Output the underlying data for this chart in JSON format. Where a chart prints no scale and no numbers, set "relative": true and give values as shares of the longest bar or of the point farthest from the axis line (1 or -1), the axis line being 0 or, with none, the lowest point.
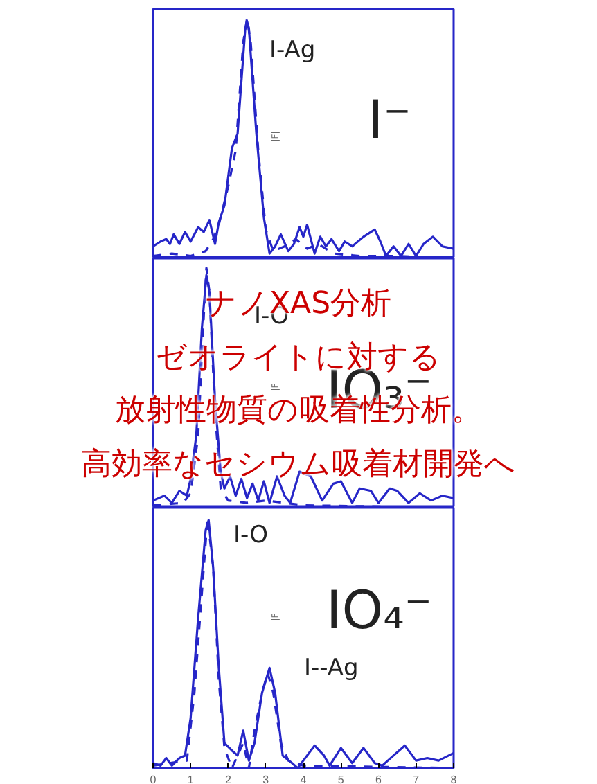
{
  "chart_data": [
    {
      "type": "line",
      "relative": true,
      "ylabel": "|F|",
      "xlim": [
        0,
        8
      ],
      "xticks": [
        0,
        1,
        2,
        3,
        4,
        5,
        6,
        7,
        8
      ],
      "tick_labels": false,
      "marker": "none",
      "grid": false,
      "annotations": [
        "I-Ag",
        "I⁻"
      ],
      "series": [
        {
          "color": "#2626c8",
          "line_style": "solid",
          "x": [
            0,
            0.2,
            0.35,
            0.45,
            0.55,
            0.7,
            0.85,
            1.0,
            1.2,
            1.35,
            1.5,
            1.65,
            1.75,
            1.9,
            2.1,
            2.25,
            2.45,
            2.5,
            2.55,
            2.75,
            2.95,
            3.1,
            3.25,
            3.4,
            3.6,
            3.75,
            3.9,
            4.0,
            4.1,
            4.3,
            4.45,
            4.6,
            4.75,
            4.95,
            5.1,
            5.3,
            5.6,
            5.9,
            6.05,
            6.2,
            6.4,
            6.6,
            6.8,
            7.0,
            7.2,
            7.45,
            7.7,
            8.0
          ],
          "values": [
            0.05,
            0.07,
            0.08,
            0.06,
            0.1,
            0.06,
            0.11,
            0.07,
            0.13,
            0.11,
            0.16,
            0.06,
            0.15,
            0.22,
            0.46,
            0.52,
            0.95,
            0.99,
            0.96,
            0.52,
            0.17,
            0.02,
            0.05,
            0.1,
            0.03,
            0.06,
            0.13,
            0.09,
            0.14,
            0.02,
            0.09,
            0.05,
            0.08,
            0.03,
            0.07,
            0.05,
            0.09,
            0.12,
            0.07,
            0.01,
            0.05,
            0.01,
            0.06,
            0.01,
            0.06,
            0.09,
            0.05,
            0.04
          ]
        },
        {
          "color": "#2626c8",
          "line_style": "dashed",
          "x": [
            0,
            0.5,
            1.0,
            1.4,
            1.6,
            1.75,
            2.0,
            2.2,
            2.4,
            2.5,
            2.6,
            2.8,
            3.0,
            3.2,
            3.5,
            3.8,
            4.1,
            4.4,
            4.8,
            5.5,
            6.5,
            8
          ],
          "values": [
            0.01,
            0.02,
            0.01,
            0.03,
            0.08,
            0.14,
            0.3,
            0.45,
            0.9,
            1.0,
            0.9,
            0.45,
            0.12,
            0.03,
            0.05,
            0.08,
            0.04,
            0.06,
            0.02,
            0.01,
            0.01,
            0.0
          ]
        }
      ]
    },
    {
      "type": "line",
      "relative": true,
      "ylabel": "|F|",
      "xlim": [
        0,
        8
      ],
      "xticks": [
        0,
        1,
        2,
        3,
        4,
        5,
        6,
        7,
        8
      ],
      "tick_labels": false,
      "marker": "none",
      "grid": false,
      "annotations": [
        "I-O",
        "IO₃⁻",
        "ナノXAS分析",
        "ゼオライトに対する",
        "放射性物質の吸着性分析。",
        "高効率なセシウム吸着材開発へ"
      ],
      "series": [
        {
          "color": "#2626c8",
          "line_style": "solid",
          "x": [
            0,
            0.3,
            0.5,
            0.7,
            0.9,
            1.0,
            1.15,
            1.3,
            1.42,
            1.5,
            1.65,
            1.8,
            1.9,
            2.05,
            2.2,
            2.35,
            2.5,
            2.65,
            2.8,
            2.95,
            3.1,
            3.3,
            3.5,
            3.65,
            3.9,
            4.2,
            4.5,
            4.8,
            5.0,
            5.3,
            5.5,
            5.8,
            6.0,
            6.3,
            6.5,
            6.8,
            7.1,
            7.4,
            7.7,
            8.0
          ],
          "values": [
            0.03,
            0.05,
            0.02,
            0.07,
            0.05,
            0.12,
            0.3,
            0.75,
            0.97,
            0.9,
            0.45,
            0.15,
            0.08,
            0.13,
            0.05,
            0.12,
            0.04,
            0.1,
            0.03,
            0.11,
            0.02,
            0.13,
            0.05,
            0.02,
            0.15,
            0.13,
            0.03,
            0.1,
            0.11,
            0.02,
            0.08,
            0.07,
            0.02,
            0.08,
            0.07,
            0.02,
            0.06,
            0.03,
            0.05,
            0.04
          ]
        },
        {
          "color": "#2626c8",
          "line_style": "dashed",
          "x": [
            0,
            0.8,
            1.0,
            1.2,
            1.35,
            1.42,
            1.5,
            1.65,
            1.8,
            2.0,
            2.5,
            3.0,
            4,
            8
          ],
          "values": [
            0.01,
            0.02,
            0.06,
            0.3,
            0.8,
            1.0,
            0.9,
            0.4,
            0.08,
            0.03,
            0.02,
            0.03,
            0.01,
            0.0
          ]
        }
      ]
    },
    {
      "type": "line",
      "relative": true,
      "ylabel": "|F|",
      "xlim": [
        0,
        8
      ],
      "xticks": [
        0,
        1,
        2,
        3,
        4,
        5,
        6,
        7,
        8
      ],
      "tick_labels": "x",
      "marker": "none",
      "grid": false,
      "annotations": [
        "I-O",
        "IO₄⁻",
        "I--Ag"
      ],
      "series": [
        {
          "color": "#2626c8",
          "line_style": "solid",
          "x": [
            0,
            0.2,
            0.35,
            0.5,
            0.7,
            0.85,
            1.0,
            1.2,
            1.4,
            1.48,
            1.6,
            1.75,
            1.9,
            2.1,
            2.25,
            2.4,
            2.55,
            2.7,
            2.9,
            3.1,
            3.25,
            3.45,
            3.7,
            3.85,
            4.0,
            4.3,
            4.55,
            4.7,
            5.0,
            5.3,
            5.6,
            5.9,
            6.1,
            6.4,
            6.7,
            7.0,
            7.3,
            7.6,
            8.0
          ],
          "values": [
            0.02,
            0.01,
            0.04,
            0.01,
            0.04,
            0.05,
            0.2,
            0.6,
            0.95,
            0.99,
            0.8,
            0.4,
            0.1,
            0.07,
            0.05,
            0.15,
            0.03,
            0.1,
            0.3,
            0.4,
            0.3,
            0.05,
            0.02,
            0.0,
            0.03,
            0.09,
            0.05,
            0.01,
            0.08,
            0.02,
            0.08,
            0.02,
            0.01,
            0.05,
            0.09,
            0.03,
            0.04,
            0.03,
            0.06
          ]
        },
        {
          "color": "#2626c8",
          "line_style": "dashed",
          "x": [
            0,
            0.9,
            1.1,
            1.3,
            1.45,
            1.6,
            1.75,
            1.9,
            2.1,
            2.4,
            2.55,
            2.7,
            2.9,
            3.05,
            3.2,
            3.4,
            3.6,
            4.0,
            8
          ],
          "values": [
            0.01,
            0.03,
            0.3,
            0.7,
            1.0,
            0.8,
            0.35,
            0.08,
            0.0,
            0.1,
            0.0,
            0.15,
            0.3,
            0.38,
            0.3,
            0.1,
            0.03,
            0.01,
            0.0
          ]
        }
      ]
    }
  ]
}
